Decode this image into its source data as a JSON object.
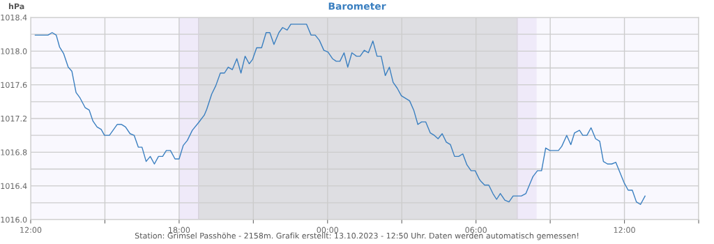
{
  "chart_data": {
    "type": "line",
    "title": "Barometer",
    "ylabel": "hPa",
    "annotations": [
      "Station: Grimsel Passhöhe - 2158m. Grafik erstellt: 13.10.2023 - 12:50 Uhr. Daten werden automatisch gemessen!"
    ],
    "x": [
      "2023-10-12T12:11",
      "2023-10-12T12:42",
      "2023-10-12T12:52",
      "2023-10-12T13:02",
      "2023-10-12T13:10",
      "2023-10-12T13:20",
      "2023-10-12T13:31",
      "2023-10-12T13:40",
      "2023-10-12T13:50",
      "2023-10-12T13:59",
      "2023-10-12T14:12",
      "2023-10-12T14:22",
      "2023-10-12T14:31",
      "2023-10-12T14:41",
      "2023-10-12T14:51",
      "2023-10-12T14:59",
      "2023-10-12T15:11",
      "2023-10-12T15:30",
      "2023-10-12T15:40",
      "2023-10-12T15:50",
      "2023-10-12T16:01",
      "2023-10-12T16:11",
      "2023-10-12T16:21",
      "2023-10-12T16:30",
      "2023-10-12T16:40",
      "2023-10-12T16:50",
      "2023-10-12T17:00",
      "2023-10-12T17:10",
      "2023-10-12T17:20",
      "2023-10-12T17:29",
      "2023-10-12T17:39",
      "2023-10-12T17:50",
      "2023-10-12T18:00",
      "2023-10-12T18:10",
      "2023-10-12T18:20",
      "2023-10-12T18:32",
      "2023-10-12T18:47",
      "2023-10-12T19:01",
      "2023-10-12T19:07",
      "2023-10-12T19:19",
      "2023-10-12T19:29",
      "2023-10-12T19:40",
      "2023-10-12T19:50",
      "2023-10-12T19:59",
      "2023-10-12T20:09",
      "2023-10-12T20:20",
      "2023-10-12T20:30",
      "2023-10-12T20:40",
      "2023-10-12T20:50",
      "2023-10-12T20:58",
      "2023-10-12T21:08",
      "2023-10-12T21:20",
      "2023-10-12T21:31",
      "2023-10-12T21:40",
      "2023-10-12T21:50",
      "2023-10-12T22:02",
      "2023-10-12T22:11",
      "2023-10-12T22:22",
      "2023-10-12T22:31",
      "2023-10-12T23:09",
      "2023-10-12T23:20",
      "2023-10-12T23:30",
      "2023-10-12T23:40",
      "2023-10-12T23:51",
      "2023-10-13T00:01",
      "2023-10-13T00:12",
      "2023-10-13T00:21",
      "2023-10-13T00:30",
      "2023-10-13T00:40",
      "2023-10-13T00:49",
      "2023-10-13T00:59",
      "2023-10-13T01:10",
      "2023-10-13T01:19",
      "2023-10-13T01:29",
      "2023-10-13T01:39",
      "2023-10-13T01:50",
      "2023-10-13T02:00",
      "2023-10-13T02:10",
      "2023-10-13T02:20",
      "2023-10-13T02:30",
      "2023-10-13T02:39",
      "2023-10-13T02:49",
      "2023-10-13T02:59",
      "2023-10-13T03:19",
      "2023-10-13T03:29",
      "2023-10-13T03:39",
      "2023-10-13T03:48",
      "2023-10-13T03:58",
      "2023-10-13T04:09",
      "2023-10-13T04:19",
      "2023-10-13T04:28",
      "2023-10-13T04:38",
      "2023-10-13T04:48",
      "2023-10-13T04:58",
      "2023-10-13T05:08",
      "2023-10-13T05:18",
      "2023-10-13T05:28",
      "2023-10-13T05:38",
      "2023-10-13T05:48",
      "2023-10-13T05:58",
      "2023-10-13T06:08",
      "2023-10-13T06:11",
      "2023-10-13T06:21",
      "2023-10-13T06:31",
      "2023-10-13T06:41",
      "2023-10-13T06:50",
      "2023-10-13T06:59",
      "2023-10-13T07:10",
      "2023-10-13T07:20",
      "2023-10-13T07:30",
      "2023-10-13T07:50",
      "2023-10-13T08:01",
      "2023-10-13T08:18",
      "2023-10-13T08:29",
      "2023-10-13T08:39",
      "2023-10-13T08:49",
      "2023-10-13T08:59",
      "2023-10-13T09:20",
      "2023-10-13T09:28",
      "2023-10-13T09:40",
      "2023-10-13T09:50",
      "2023-10-13T09:59",
      "2023-10-13T10:11",
      "2023-10-13T10:19",
      "2023-10-13T10:29",
      "2023-10-13T10:39",
      "2023-10-13T10:50",
      "2023-10-13T11:00",
      "2023-10-13T11:09",
      "2023-10-13T11:19",
      "2023-10-13T11:29",
      "2023-10-13T11:39",
      "2023-10-13T11:49",
      "2023-10-13T11:59",
      "2023-10-13T12:09",
      "2023-10-13T12:19",
      "2023-10-13T12:29",
      "2023-10-13T12:39",
      "2023-10-13T12:50"
    ],
    "series": [
      {
        "color": "#3a7fc0",
        "values": [
          1018.19,
          1018.19,
          1018.22,
          1018.19,
          1018.05,
          1017.97,
          1017.81,
          1017.76,
          1017.51,
          1017.45,
          1017.33,
          1017.3,
          1017.17,
          1017.1,
          1017.07,
          1017.0,
          1017.0,
          1017.13,
          1017.13,
          1017.1,
          1017.02,
          1017.0,
          1016.86,
          1016.86,
          1016.69,
          1016.75,
          1016.66,
          1016.75,
          1016.75,
          1016.82,
          1016.82,
          1016.72,
          1016.72,
          1016.88,
          1016.94,
          1017.06,
          1017.15,
          1017.24,
          1017.31,
          1017.49,
          1017.59,
          1017.74,
          1017.74,
          1017.81,
          1017.78,
          1017.91,
          1017.74,
          1017.94,
          1017.85,
          1017.9,
          1018.04,
          1018.04,
          1018.22,
          1018.22,
          1018.08,
          1018.22,
          1018.28,
          1018.25,
          1018.32,
          1018.32,
          1018.19,
          1018.19,
          1018.13,
          1018.01,
          1017.99,
          1017.91,
          1017.88,
          1017.88,
          1017.98,
          1017.81,
          1017.98,
          1017.94,
          1017.94,
          1018.01,
          1017.98,
          1018.12,
          1017.94,
          1017.94,
          1017.71,
          1017.81,
          1017.63,
          1017.56,
          1017.47,
          1017.41,
          1017.3,
          1017.13,
          1017.16,
          1017.16,
          1017.03,
          1017.0,
          1016.96,
          1017.02,
          1016.92,
          1016.89,
          1016.75,
          1016.75,
          1016.78,
          1016.65,
          1016.58,
          1016.58,
          1016.48,
          1016.46,
          1016.41,
          1016.41,
          1016.31,
          1016.24,
          1016.31,
          1016.23,
          1016.21,
          1016.28,
          1016.28,
          1016.31,
          1016.51,
          1016.58,
          1016.58,
          1016.85,
          1016.82,
          1016.82,
          1016.87,
          1017.0,
          1016.89,
          1017.03,
          1017.06,
          1017.0,
          1017.0,
          1017.09,
          1016.96,
          1016.93,
          1016.69,
          1016.66,
          1016.66,
          1016.68,
          1016.56,
          1016.44,
          1016.35,
          1016.35,
          1016.21,
          1016.18,
          1016.28
        ]
      }
    ],
    "xlim": [
      "2023-10-12T12:00",
      "2023-10-13T15:00"
    ],
    "xticks": [
      {
        "value": "2023-10-12T12:00",
        "label": "12:00"
      },
      {
        "value": "2023-10-12T15:00",
        "label": null
      },
      {
        "value": "2023-10-12T18:00",
        "label": "18:00"
      },
      {
        "value": "2023-10-12T21:00",
        "label": null
      },
      {
        "value": "2023-10-13T00:00",
        "label": "00:00"
      },
      {
        "value": "2023-10-13T03:00",
        "label": null
      },
      {
        "value": "2023-10-13T06:00",
        "label": "06:00"
      },
      {
        "value": "2023-10-13T09:00",
        "label": null
      },
      {
        "value": "2023-10-13T12:00",
        "label": "12:00"
      },
      {
        "value": "2023-10-13T15:00",
        "label": null
      }
    ],
    "ylim": [
      1016.0,
      1018.4
    ],
    "yticks": [
      {
        "value": 1016.0,
        "label": "1016.0"
      },
      {
        "value": 1016.2,
        "label": null
      },
      {
        "value": 1016.4,
        "label": "1016.4"
      },
      {
        "value": 1016.6,
        "label": null
      },
      {
        "value": 1016.8,
        "label": "1016.8"
      },
      {
        "value": 1017.0,
        "label": null
      },
      {
        "value": 1017.2,
        "label": "1017.2"
      },
      {
        "value": 1017.4,
        "label": null
      },
      {
        "value": 1017.6,
        "label": "1017.6"
      },
      {
        "value": 1017.8,
        "label": null
      },
      {
        "value": 1018.0,
        "label": "1018.0"
      },
      {
        "value": 1018.2,
        "label": null
      },
      {
        "value": 1018.4,
        "label": "1018.4"
      }
    ],
    "bands": [
      {
        "axis": "x",
        "from": "2023-10-12T18:00",
        "to": "2023-10-12T18:47",
        "color": "#efeaf9"
      },
      {
        "axis": "x",
        "from": "2023-10-12T18:47",
        "to": "2023-10-13T07:40",
        "color": "#dedee2"
      },
      {
        "axis": "x",
        "from": "2023-10-13T07:40",
        "to": "2023-10-13T08:27",
        "color": "#efeaf9"
      }
    ],
    "ref_lines": [
      {
        "axis": "x",
        "value": "2023-10-12T18:47",
        "color": "#d6d2dc"
      },
      {
        "axis": "x",
        "value": "2023-10-13T07:40",
        "color": "#d6d2dc"
      }
    ],
    "grid": true,
    "marker": "none",
    "line_style": "solid"
  }
}
